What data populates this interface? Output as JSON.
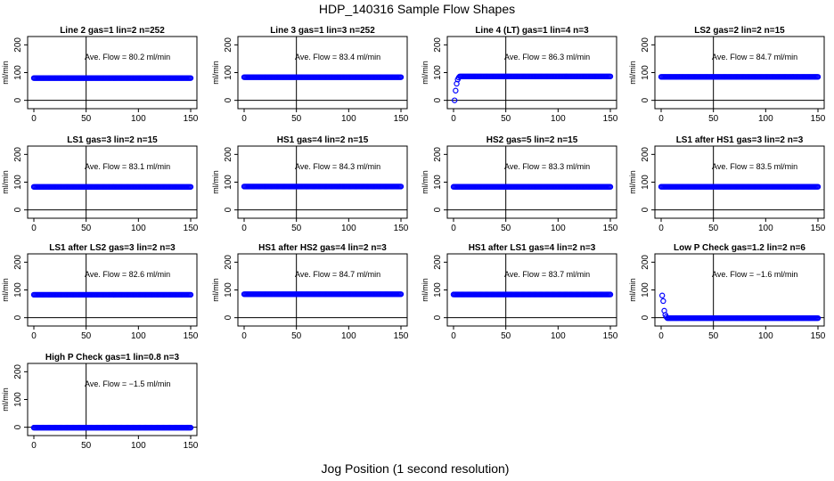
{
  "figure": {
    "title": "HDP_140316  Sample Flow Shapes",
    "xlabel": "Jog Position (1 second resolution)",
    "ylabel": "ml/min",
    "annotation_prefix": "Ave. Flow =",
    "annotation_unit": "ml/min",
    "point_color": "#0000ff",
    "x_ticks": [
      0,
      50,
      100,
      150
    ],
    "y_ticks": [
      0,
      100,
      200
    ],
    "xlim": [
      0,
      152
    ],
    "ylim": [
      -30,
      230
    ],
    "vline_x": 50,
    "hline_y": 0
  },
  "chart_data": [
    {
      "type": "scatter",
      "title": "Line 2 gas=1 lin=2 n=252",
      "ave_flow": "80.2",
      "shape": "flat",
      "level": 80.2
    },
    {
      "type": "scatter",
      "title": "Line 3 gas=1 lin=3 n=252",
      "ave_flow": "83.4",
      "shape": "flat",
      "level": 83.4
    },
    {
      "type": "scatter",
      "title": "Line 4 (LT) gas=1 lin=4 n=3",
      "ave_flow": "86.3",
      "shape": "ramp-up",
      "level": 86.3,
      "initial_points": [
        [
          1,
          0
        ],
        [
          2,
          35
        ],
        [
          3,
          60
        ],
        [
          4,
          75
        ],
        [
          5,
          82
        ]
      ]
    },
    {
      "type": "scatter",
      "title": "LS2 gas=2 lin=2 n=15",
      "ave_flow": "84.7",
      "shape": "flat",
      "level": 84.7
    },
    {
      "type": "scatter",
      "title": "LS1 gas=3 lin=2 n=15",
      "ave_flow": "83.1",
      "shape": "flat",
      "level": 83.1
    },
    {
      "type": "scatter",
      "title": "HS1 gas=4 lin=2 n=15",
      "ave_flow": "84.3",
      "shape": "flat",
      "level": 84.3
    },
    {
      "type": "scatter",
      "title": "HS2 gas=5 lin=2 n=15",
      "ave_flow": "83.3",
      "shape": "flat",
      "level": 83.3
    },
    {
      "type": "scatter",
      "title": "LS1 after HS1 gas=3 lin=2 n=3",
      "ave_flow": "83.5",
      "shape": "flat",
      "level": 83.5
    },
    {
      "type": "scatter",
      "title": "LS1 after LS2 gas=3 lin=2 n=3",
      "ave_flow": "82.6",
      "shape": "flat",
      "level": 82.6
    },
    {
      "type": "scatter",
      "title": "HS1 after HS2 gas=4 lin=2 n=3",
      "ave_flow": "84.7",
      "shape": "flat",
      "level": 84.7
    },
    {
      "type": "scatter",
      "title": "HS1 after LS1 gas=4 lin=2 n=3",
      "ave_flow": "83.7",
      "shape": "flat",
      "level": 83.7
    },
    {
      "type": "scatter",
      "title": "Low P Check gas=1.2 lin=2 n=6",
      "ave_flow": "−1.6",
      "shape": "decay",
      "level": -1.6,
      "initial_points": [
        [
          1,
          80
        ],
        [
          2,
          60
        ],
        [
          3,
          25
        ],
        [
          4,
          10
        ],
        [
          5,
          3
        ]
      ]
    },
    {
      "type": "scatter",
      "title": "High P Check gas=1 lin=0.8 n=3",
      "ave_flow": "−1.5",
      "shape": "flat",
      "level": -1.5
    }
  ]
}
